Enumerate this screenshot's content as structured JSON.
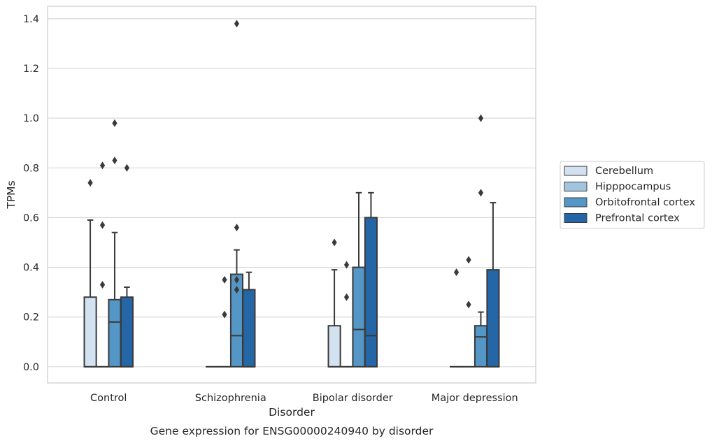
{
  "chart_data": {
    "type": "box",
    "title": "Gene expression for ENSG00000240940 by disorder",
    "xlabel": "Disorder",
    "ylabel": "TPMs",
    "ylim": [
      -0.065,
      1.45
    ],
    "yticks": [
      0.0,
      0.2,
      0.4,
      0.6,
      0.8,
      1.0,
      1.2,
      1.4
    ],
    "ytick_labels": [
      "0.0",
      "0.2",
      "0.4",
      "0.6",
      "0.8",
      "1.0",
      "1.2",
      "1.4"
    ],
    "grid": "horizontal",
    "legend_position": "right",
    "categories": [
      "Control",
      "Schizophrenia",
      "Bipolar disorder",
      "Major depression"
    ],
    "series": [
      {
        "name": "Cerebellum",
        "color": "#d3e2f0",
        "boxes": [
          {
            "q1": 0.0,
            "median": 0.0,
            "q3": 0.28,
            "whisker_low": 0.0,
            "whisker_high": 0.59,
            "outliers": [
              0.74
            ]
          },
          {
            "q1": 0.0,
            "median": 0.0,
            "q3": 0.0,
            "whisker_low": 0.0,
            "whisker_high": 0.0,
            "outliers": []
          },
          {
            "q1": 0.0,
            "median": 0.0,
            "q3": 0.165,
            "whisker_low": 0.0,
            "whisker_high": 0.39,
            "outliers": [
              0.5
            ]
          },
          {
            "q1": 0.0,
            "median": 0.0,
            "q3": 0.0,
            "whisker_low": 0.0,
            "whisker_high": 0.0,
            "outliers": [
              0.38
            ]
          }
        ]
      },
      {
        "name": "Hipppocampus",
        "color": "#a1c4df",
        "boxes": [
          {
            "q1": 0.0,
            "median": 0.0,
            "q3": 0.0,
            "whisker_low": 0.0,
            "whisker_high": 0.0,
            "outliers": [
              0.81,
              0.57,
              0.33
            ]
          },
          {
            "q1": 0.0,
            "median": 0.0,
            "q3": 0.0,
            "whisker_low": 0.0,
            "whisker_high": 0.0,
            "outliers": [
              0.35,
              0.21
            ]
          },
          {
            "q1": 0.0,
            "median": 0.0,
            "q3": 0.0,
            "whisker_low": 0.0,
            "whisker_high": 0.0,
            "outliers": [
              0.41,
              0.28
            ]
          },
          {
            "q1": 0.0,
            "median": 0.0,
            "q3": 0.0,
            "whisker_low": 0.0,
            "whisker_high": 0.0,
            "outliers": [
              0.43,
              0.25
            ]
          }
        ]
      },
      {
        "name": "Orbitofrontal cortex",
        "color": "#5496c5",
        "boxes": [
          {
            "q1": 0.0,
            "median": 0.18,
            "q3": 0.27,
            "whisker_low": 0.0,
            "whisker_high": 0.54,
            "outliers": [
              0.98,
              0.83
            ]
          },
          {
            "q1": 0.0,
            "median": 0.125,
            "q3": 0.372,
            "whisker_low": 0.0,
            "whisker_high": 0.47,
            "outliers": [
              1.38,
              0.56,
              0.35,
              0.31
            ]
          },
          {
            "q1": 0.0,
            "median": 0.15,
            "q3": 0.4,
            "whisker_low": 0.0,
            "whisker_high": 0.7,
            "outliers": []
          },
          {
            "q1": 0.0,
            "median": 0.12,
            "q3": 0.165,
            "whisker_low": 0.0,
            "whisker_high": 0.22,
            "outliers": [
              1.0,
              0.7
            ]
          }
        ]
      },
      {
        "name": "Prefrontal cortex",
        "color": "#2466a6",
        "boxes": [
          {
            "q1": 0.0,
            "median": 0.0,
            "q3": 0.28,
            "whisker_low": 0.0,
            "whisker_high": 0.32,
            "outliers": [
              0.8
            ]
          },
          {
            "q1": 0.0,
            "median": 0.0,
            "q3": 0.31,
            "whisker_low": 0.0,
            "whisker_high": 0.38,
            "outliers": []
          },
          {
            "q1": 0.0,
            "median": 0.125,
            "q3": 0.6,
            "whisker_low": 0.0,
            "whisker_high": 0.7,
            "outliers": []
          },
          {
            "q1": 0.0,
            "median": 0.0,
            "q3": 0.39,
            "whisker_low": 0.0,
            "whisker_high": 0.66,
            "outliers": []
          }
        ]
      }
    ]
  }
}
